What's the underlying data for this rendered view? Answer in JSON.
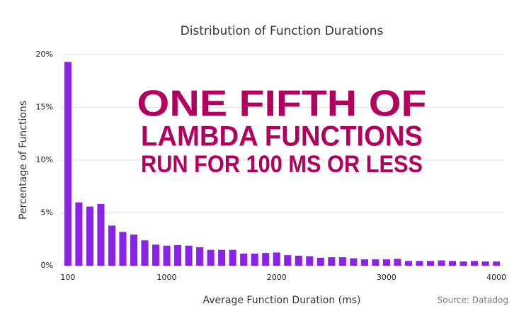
{
  "chart_data": {
    "type": "bar",
    "title": "Distribution of Function Durations",
    "x_label": "Average Function Duration (ms)",
    "y_label": "Percentage of Functions",
    "source": "Source: Datadog",
    "annotation": [
      "ONE FIFTH OF",
      "LAMBDA FUNCTIONS",
      "RUN FOR 100 MS OR LESS"
    ],
    "annotation_color": "#b3005e",
    "x": [
      100,
      200,
      300,
      400,
      500,
      600,
      700,
      800,
      900,
      1000,
      1100,
      1200,
      1300,
      1400,
      1500,
      1600,
      1700,
      1800,
      1900,
      2000,
      2100,
      2200,
      2300,
      2400,
      2500,
      2600,
      2700,
      2800,
      2900,
      3000,
      3100,
      3200,
      3300,
      3400,
      3500,
      3600,
      3700,
      3800,
      3900,
      4000
    ],
    "values": [
      19.3,
      6.0,
      5.6,
      5.85,
      3.8,
      3.2,
      2.95,
      2.4,
      2.0,
      1.9,
      1.95,
      1.9,
      1.75,
      1.5,
      1.5,
      1.5,
      1.15,
      1.15,
      1.2,
      1.25,
      1.0,
      0.95,
      0.9,
      0.75,
      0.8,
      0.8,
      0.7,
      0.6,
      0.6,
      0.6,
      0.65,
      0.45,
      0.45,
      0.45,
      0.5,
      0.45,
      0.4,
      0.45,
      0.4,
      0.4
    ],
    "color": "#8a22e8",
    "xlim": [
      30,
      4070
    ],
    "xticks": [
      100,
      1000,
      2000,
      3000,
      4000
    ],
    "ylim": [
      0,
      20
    ],
    "yticks": [
      {
        "value": 0,
        "label": "0%"
      },
      {
        "value": 5,
        "label": "5%"
      },
      {
        "value": 10,
        "label": "10%"
      },
      {
        "value": 15,
        "label": "15%"
      },
      {
        "value": 20,
        "label": "20%"
      }
    ],
    "grid": true
  }
}
